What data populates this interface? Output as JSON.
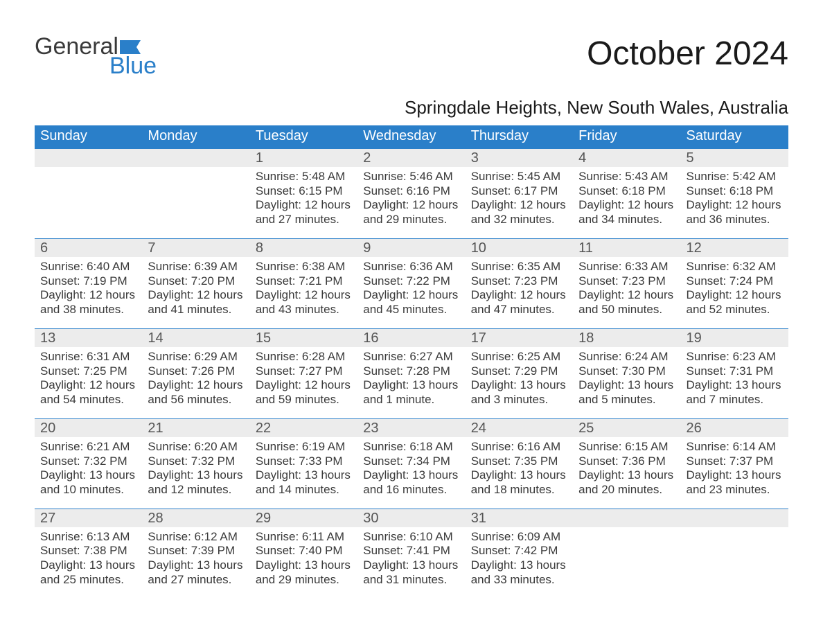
{
  "logo": {
    "word1": "General",
    "word2": "Blue",
    "flag_color": "#2a7fc9"
  },
  "title": "October 2024",
  "subtitle": "Springdale Heights, New South Wales, Australia",
  "colors": {
    "header_bg": "#2a7fc9",
    "header_fg": "#ffffff",
    "daynum_bg": "#ececec",
    "text": "#3a3a3a",
    "rule": "#2a7fc9"
  },
  "days_of_week": [
    "Sunday",
    "Monday",
    "Tuesday",
    "Wednesday",
    "Thursday",
    "Friday",
    "Saturday"
  ],
  "labels": {
    "sunrise": "Sunrise:",
    "sunset": "Sunset:",
    "daylight": "Daylight:"
  },
  "weeks": [
    [
      null,
      null,
      {
        "n": "1",
        "sunrise": "5:48 AM",
        "sunset": "6:15 PM",
        "daylight": "12 hours and 27 minutes."
      },
      {
        "n": "2",
        "sunrise": "5:46 AM",
        "sunset": "6:16 PM",
        "daylight": "12 hours and 29 minutes."
      },
      {
        "n": "3",
        "sunrise": "5:45 AM",
        "sunset": "6:17 PM",
        "daylight": "12 hours and 32 minutes."
      },
      {
        "n": "4",
        "sunrise": "5:43 AM",
        "sunset": "6:18 PM",
        "daylight": "12 hours and 34 minutes."
      },
      {
        "n": "5",
        "sunrise": "5:42 AM",
        "sunset": "6:18 PM",
        "daylight": "12 hours and 36 minutes."
      }
    ],
    [
      {
        "n": "6",
        "sunrise": "6:40 AM",
        "sunset": "7:19 PM",
        "daylight": "12 hours and 38 minutes."
      },
      {
        "n": "7",
        "sunrise": "6:39 AM",
        "sunset": "7:20 PM",
        "daylight": "12 hours and 41 minutes."
      },
      {
        "n": "8",
        "sunrise": "6:38 AM",
        "sunset": "7:21 PM",
        "daylight": "12 hours and 43 minutes."
      },
      {
        "n": "9",
        "sunrise": "6:36 AM",
        "sunset": "7:22 PM",
        "daylight": "12 hours and 45 minutes."
      },
      {
        "n": "10",
        "sunrise": "6:35 AM",
        "sunset": "7:23 PM",
        "daylight": "12 hours and 47 minutes."
      },
      {
        "n": "11",
        "sunrise": "6:33 AM",
        "sunset": "7:23 PM",
        "daylight": "12 hours and 50 minutes."
      },
      {
        "n": "12",
        "sunrise": "6:32 AM",
        "sunset": "7:24 PM",
        "daylight": "12 hours and 52 minutes."
      }
    ],
    [
      {
        "n": "13",
        "sunrise": "6:31 AM",
        "sunset": "7:25 PM",
        "daylight": "12 hours and 54 minutes."
      },
      {
        "n": "14",
        "sunrise": "6:29 AM",
        "sunset": "7:26 PM",
        "daylight": "12 hours and 56 minutes."
      },
      {
        "n": "15",
        "sunrise": "6:28 AM",
        "sunset": "7:27 PM",
        "daylight": "12 hours and 59 minutes."
      },
      {
        "n": "16",
        "sunrise": "6:27 AM",
        "sunset": "7:28 PM",
        "daylight": "13 hours and 1 minute."
      },
      {
        "n": "17",
        "sunrise": "6:25 AM",
        "sunset": "7:29 PM",
        "daylight": "13 hours and 3 minutes."
      },
      {
        "n": "18",
        "sunrise": "6:24 AM",
        "sunset": "7:30 PM",
        "daylight": "13 hours and 5 minutes."
      },
      {
        "n": "19",
        "sunrise": "6:23 AM",
        "sunset": "7:31 PM",
        "daylight": "13 hours and 7 minutes."
      }
    ],
    [
      {
        "n": "20",
        "sunrise": "6:21 AM",
        "sunset": "7:32 PM",
        "daylight": "13 hours and 10 minutes."
      },
      {
        "n": "21",
        "sunrise": "6:20 AM",
        "sunset": "7:32 PM",
        "daylight": "13 hours and 12 minutes."
      },
      {
        "n": "22",
        "sunrise": "6:19 AM",
        "sunset": "7:33 PM",
        "daylight": "13 hours and 14 minutes."
      },
      {
        "n": "23",
        "sunrise": "6:18 AM",
        "sunset": "7:34 PM",
        "daylight": "13 hours and 16 minutes."
      },
      {
        "n": "24",
        "sunrise": "6:16 AM",
        "sunset": "7:35 PM",
        "daylight": "13 hours and 18 minutes."
      },
      {
        "n": "25",
        "sunrise": "6:15 AM",
        "sunset": "7:36 PM",
        "daylight": "13 hours and 20 minutes."
      },
      {
        "n": "26",
        "sunrise": "6:14 AM",
        "sunset": "7:37 PM",
        "daylight": "13 hours and 23 minutes."
      }
    ],
    [
      {
        "n": "27",
        "sunrise": "6:13 AM",
        "sunset": "7:38 PM",
        "daylight": "13 hours and 25 minutes."
      },
      {
        "n": "28",
        "sunrise": "6:12 AM",
        "sunset": "7:39 PM",
        "daylight": "13 hours and 27 minutes."
      },
      {
        "n": "29",
        "sunrise": "6:11 AM",
        "sunset": "7:40 PM",
        "daylight": "13 hours and 29 minutes."
      },
      {
        "n": "30",
        "sunrise": "6:10 AM",
        "sunset": "7:41 PM",
        "daylight": "13 hours and 31 minutes."
      },
      {
        "n": "31",
        "sunrise": "6:09 AM",
        "sunset": "7:42 PM",
        "daylight": "13 hours and 33 minutes."
      },
      null,
      null
    ]
  ]
}
